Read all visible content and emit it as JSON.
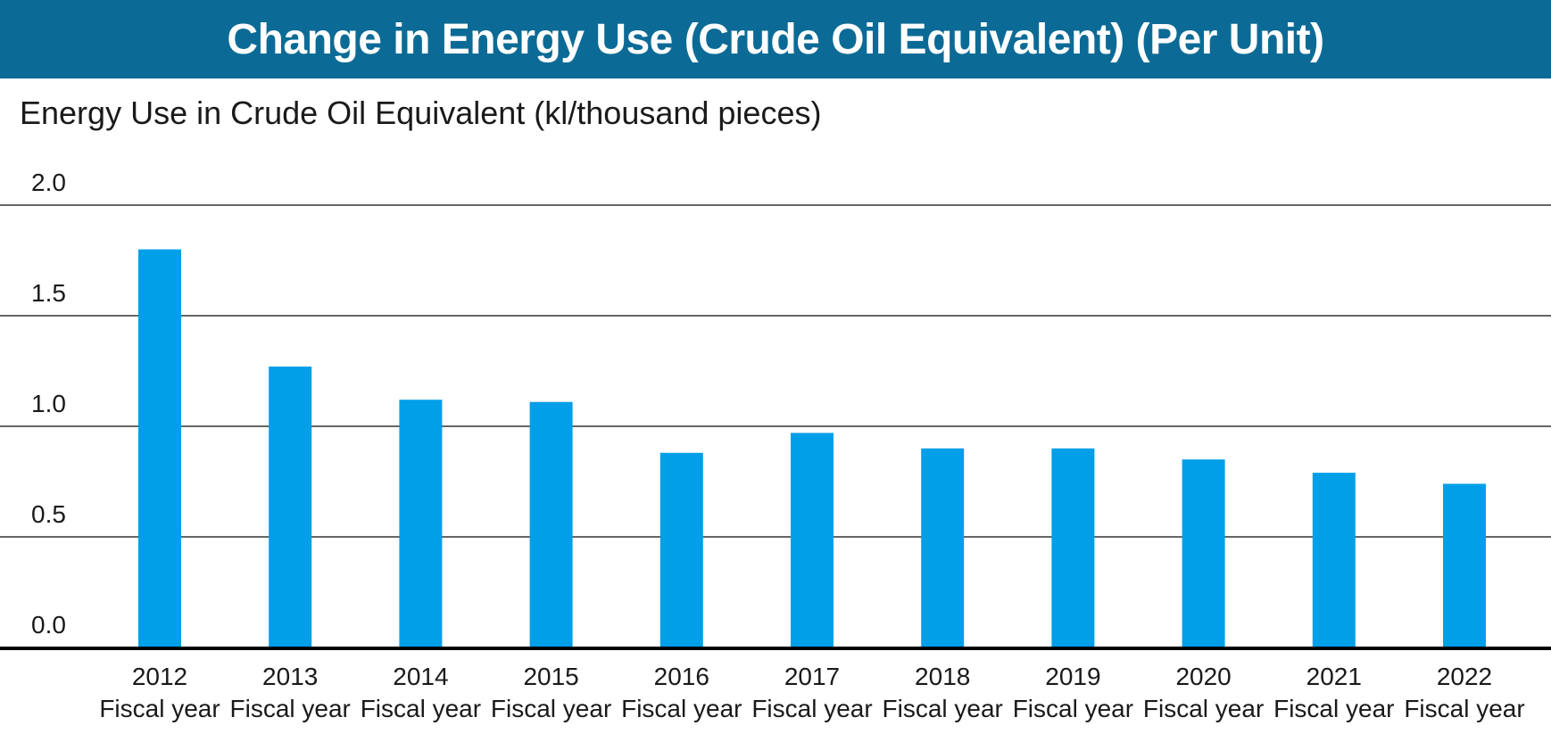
{
  "chart_data": {
    "type": "bar",
    "title": "Change in Energy Use (Crude Oil Equivalent) (Per Unit)",
    "ylabel": "Energy Use in Crude Oil Equivalent (kl/thousand pieces)",
    "xlabel": "",
    "categories": [
      {
        "year": "2012",
        "label": "Fiscal year"
      },
      {
        "year": "2013",
        "label": "Fiscal year"
      },
      {
        "year": "2014",
        "label": "Fiscal year"
      },
      {
        "year": "2015",
        "label": "Fiscal year"
      },
      {
        "year": "2016",
        "label": "Fiscal year"
      },
      {
        "year": "2017",
        "label": "Fiscal year"
      },
      {
        "year": "2018",
        "label": "Fiscal year"
      },
      {
        "year": "2019",
        "label": "Fiscal year"
      },
      {
        "year": "2020",
        "label": "Fiscal year"
      },
      {
        "year": "2021",
        "label": "Fiscal year"
      },
      {
        "year": "2022",
        "label": "Fiscal year"
      }
    ],
    "values": [
      1.8,
      1.27,
      1.12,
      1.11,
      0.88,
      0.97,
      0.9,
      0.9,
      0.85,
      0.79,
      0.74
    ],
    "ylim": [
      0,
      2.0
    ],
    "yticks": [
      "0.0",
      "0.5",
      "1.0",
      "1.5",
      "2.0"
    ],
    "grid": true,
    "bar_color": "#009fe8",
    "header_color": "#0c6b96"
  }
}
